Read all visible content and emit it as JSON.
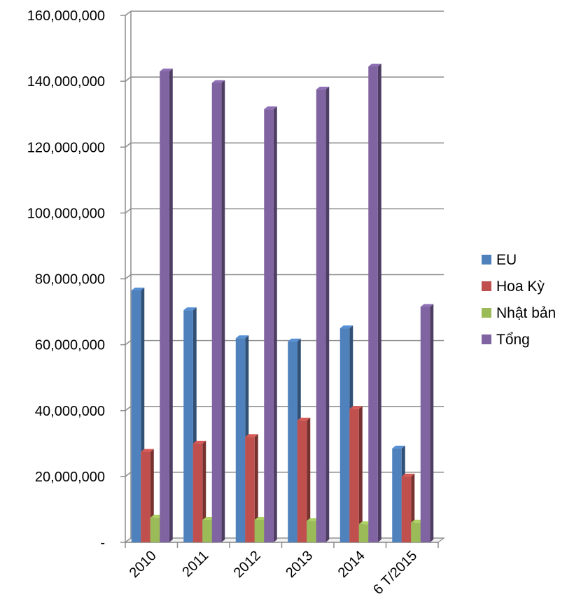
{
  "chart_data": {
    "type": "bar",
    "title": "",
    "xlabel": "",
    "ylabel": "",
    "categories": [
      "2010",
      "2011",
      "2012",
      "2013",
      "2014",
      "6 T/2015"
    ],
    "series": [
      {
        "name": "EU",
        "color": "#4f81bd",
        "values": [
          76500000,
          70500000,
          62000000,
          61000000,
          65000000,
          28500000
        ]
      },
      {
        "name": "Hoa Kỳ",
        "color": "#c0504d",
        "values": [
          27500000,
          30000000,
          32000000,
          37000000,
          40500000,
          20000000
        ]
      },
      {
        "name": "Nhật bản",
        "color": "#9bbb59",
        "values": [
          7500000,
          6800000,
          6800000,
          6500000,
          5500000,
          6000000
        ]
      },
      {
        "name": "Tổng",
        "color": "#8064a2",
        "values": [
          143000000,
          139500000,
          131500000,
          137500000,
          144500000,
          71500000
        ]
      }
    ],
    "ylim": [
      0,
      160000000
    ],
    "yticks": [
      0,
      20000000,
      40000000,
      60000000,
      80000000,
      100000000,
      120000000,
      140000000,
      160000000
    ],
    "ytick_labels": [
      "-",
      "20,000,000",
      "40,000,000",
      "60,000,000",
      "80,000,000",
      "100,000,000",
      "120,000,000",
      "140,000,000",
      "160,000,000"
    ],
    "grid": true,
    "legend_position": "right"
  }
}
